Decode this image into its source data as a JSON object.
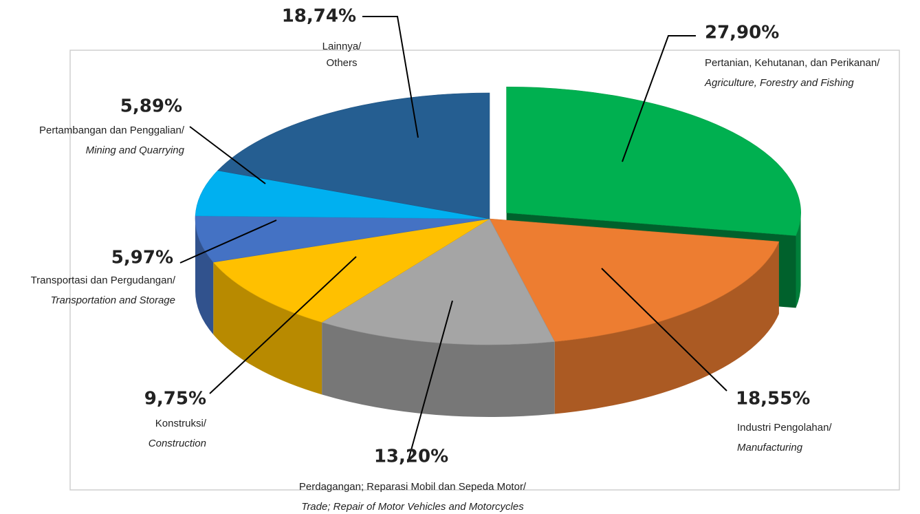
{
  "chart_data": {
    "type": "pie",
    "categories": [
      "Pertanian, Kehutanan, dan Perikanan/",
      "Industri Pengolahan/",
      "Perdagangan; Reparasi Mobil dan Sepeda Motor/",
      "Konstruksi/",
      "Transportasi dan Pergudangan/",
      "Pertambangan dan Penggalian/",
      "Lainnya/"
    ],
    "categories_en": [
      "Agriculture, Forestry and Fishing",
      "Manufacturing",
      "Trade; Repair of Motor Vehicles and Motorcycles",
      "Construction",
      "Transportation and Storage",
      "Mining and Quarrying",
      "Others"
    ],
    "values": [
      27.9,
      18.55,
      13.2,
      9.75,
      5.97,
      5.89,
      18.74
    ],
    "value_labels": [
      "27,90%",
      "18,55%",
      "13,20%",
      "9,75%",
      "5,97%",
      "5,89%",
      "18,74%"
    ],
    "colors": [
      "#00b050",
      "#ed7d31",
      "#a5a5a5",
      "#ffc000",
      "#4472c4",
      "#00b0f0",
      "#255e91"
    ],
    "label_colors": [
      "#00a650",
      "#ed7d31",
      "#a5a5a5",
      "#ffc000",
      "#4472c4",
      "#29abe2",
      "#29abe2"
    ],
    "exploded": [
      true,
      false,
      false,
      false,
      false,
      false,
      false
    ]
  }
}
